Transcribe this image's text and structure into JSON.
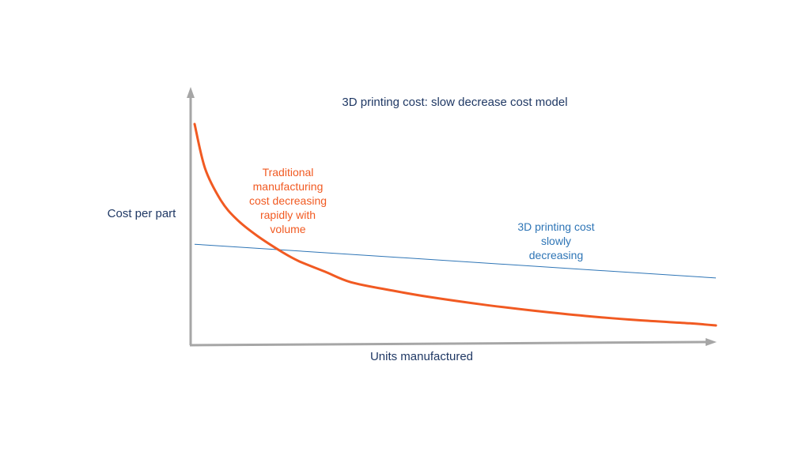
{
  "chart_data": {
    "type": "line",
    "title": "3D printing cost: slow decrease cost model",
    "xlabel": "Units manufactured",
    "ylabel": "Cost per part",
    "xlim": [
      0,
      1
    ],
    "ylim": [
      0,
      1
    ],
    "grid": false,
    "ticks": false,
    "colors": {
      "axis": "#a6a6a6",
      "traditional": "#f15a22",
      "printing": "#2e75b6",
      "text": "#1f3864"
    },
    "series": [
      {
        "key": "traditional",
        "x": [
          0.0,
          0.02,
          0.05,
          0.08,
          0.12,
          0.17,
          0.2,
          0.25,
          0.3,
          0.38,
          0.45,
          0.55,
          0.65,
          0.75,
          0.85,
          0.95,
          1.0
        ],
        "y": [
          1.0,
          0.79,
          0.64,
          0.55,
          0.47,
          0.39,
          0.35,
          0.3,
          0.25,
          0.21,
          0.18,
          0.145,
          0.115,
          0.09,
          0.07,
          0.055,
          0.045
        ]
      },
      {
        "key": "printing",
        "x": [
          0.0,
          1.0
        ],
        "y": [
          0.43,
          0.27
        ]
      }
    ],
    "annotations": [
      {
        "series": "traditional",
        "lines": [
          "Traditional",
          "manufacturing",
          "cost decreasing",
          "rapidly with",
          "volume"
        ]
      },
      {
        "series": "printing",
        "lines": [
          "3D printing cost",
          "slowly",
          "decreasing"
        ]
      }
    ]
  }
}
